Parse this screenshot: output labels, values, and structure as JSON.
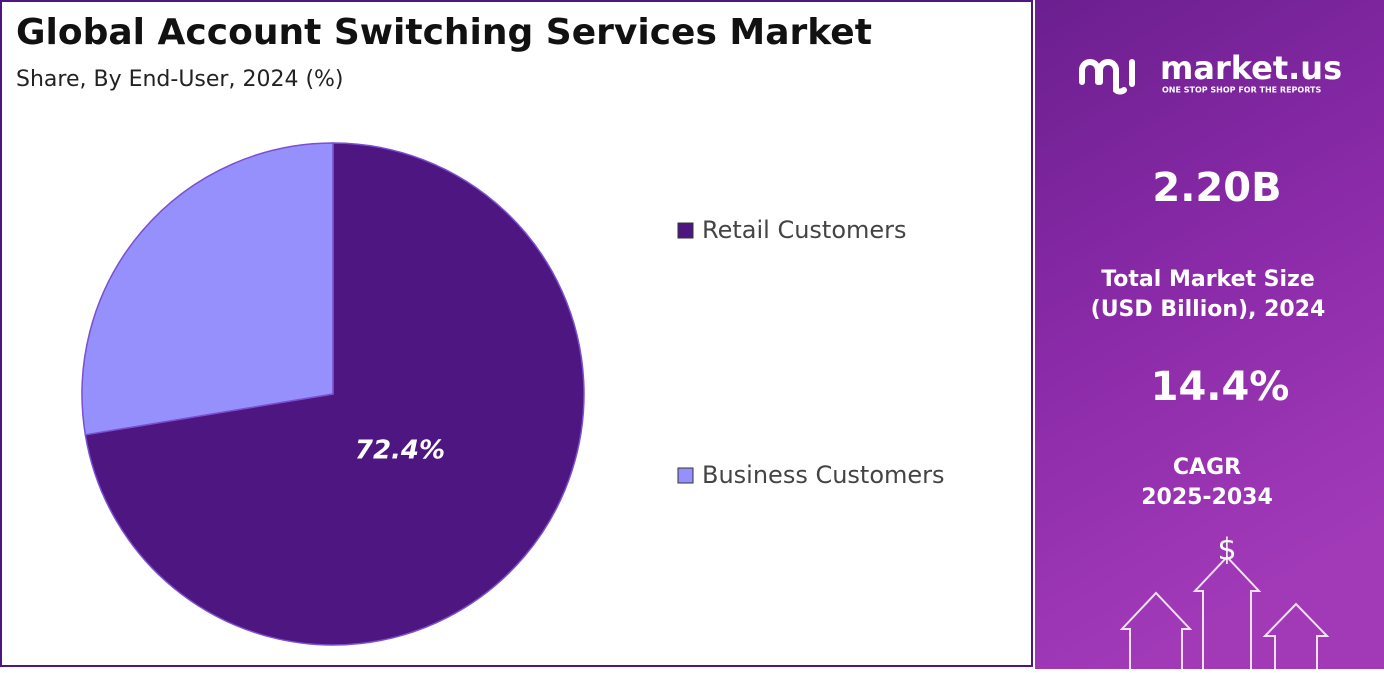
{
  "chart_data": {
    "type": "pie",
    "title": "Global Account Switching Services Market",
    "subtitle": "Share, By End-User, 2024 (%)",
    "categories": [
      "Retail Customers",
      "Business Customers"
    ],
    "values": [
      72.4,
      27.6
    ],
    "value_labels": [
      "72.4%",
      null
    ],
    "colors": [
      "#4e1680",
      "#9690fc"
    ]
  },
  "panel": {
    "logo": "market.us",
    "tagline": "ONE STOP SHOP FOR THE REPORTS",
    "market_size": "2.20B",
    "market_size_label": [
      "Total Market Size",
      "(USD Billion), 2024"
    ],
    "cagr": "14.4%",
    "cagr_label": [
      "CAGR",
      "2025-2034"
    ]
  }
}
